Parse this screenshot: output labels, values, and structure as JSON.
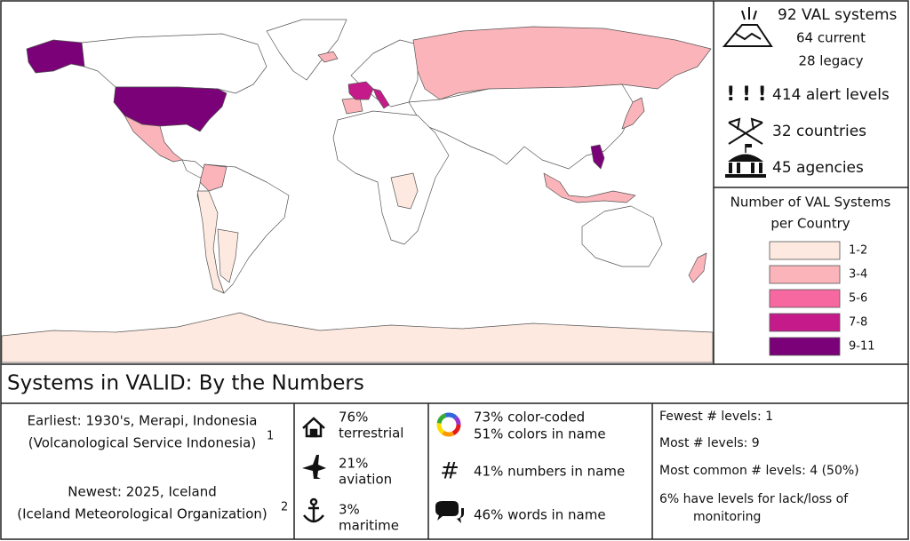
{
  "stats": {
    "systems": {
      "total": "92 VAL systems",
      "current": "64 current",
      "legacy": "28 legacy"
    },
    "alert_levels": "414 alert levels",
    "countries": "32 countries",
    "agencies": "45 agencies"
  },
  "legend": {
    "title": [
      "Number of VAL Systems",
      "per Country"
    ],
    "items": [
      {
        "label": "1-2",
        "color": "#fde9e0"
      },
      {
        "label": "3-4",
        "color": "#fbb4b9"
      },
      {
        "label": "5-6",
        "color": "#f768a1"
      },
      {
        "label": "7-8",
        "color": "#c51b8a"
      },
      {
        "label": "9-11",
        "color": "#7a0177"
      }
    ]
  },
  "panel": {
    "title": "Systems in VALID: By the Numbers",
    "dates": {
      "earliest": {
        "text": "Earliest: 1930's, Merapi, Indonesia",
        "agency": "(Volcanological Service Indonesia)",
        "note": "1"
      },
      "newest": {
        "text": "Newest: 2025, Iceland",
        "agency": "(Iceland Meteorological Organization)",
        "note": "2"
      }
    },
    "modes": [
      {
        "percent": "76%",
        "label": "terrestrial"
      },
      {
        "percent": "21%",
        "label": "aviation"
      },
      {
        "percent": "3%",
        "label": "maritime"
      }
    ],
    "naming": [
      "73% color-coded",
      "51% colors in name",
      "41% numbers in name",
      "46% words in name"
    ],
    "levels": [
      "Fewest # levels: 1",
      "Most # levels: 9",
      "Most common # levels: 4 (50%)",
      "6% have levels for lack/loss of",
      "monitoring"
    ]
  }
}
